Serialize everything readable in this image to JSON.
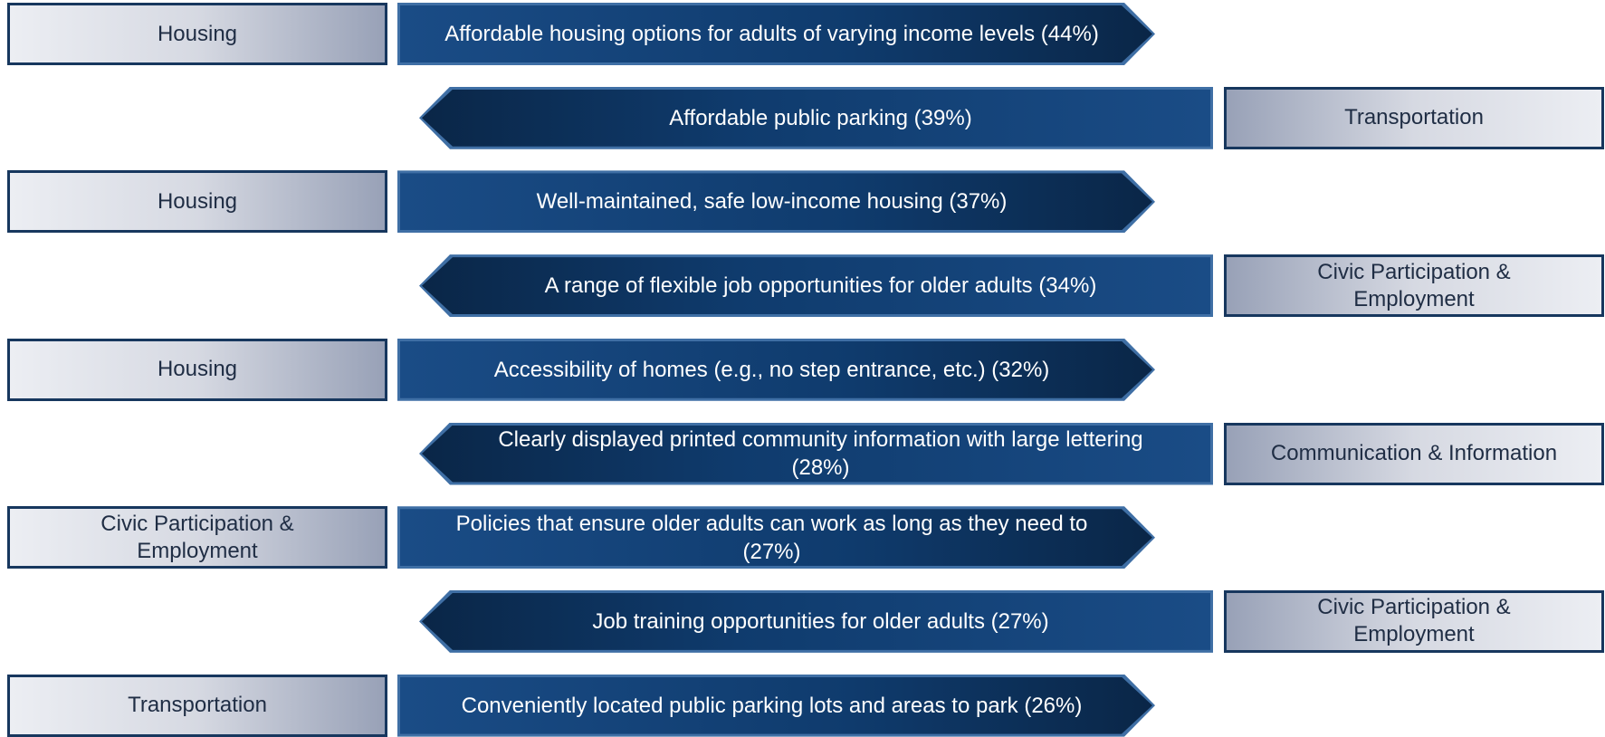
{
  "rows": [
    {
      "category": "Housing",
      "text": "Affordable housing options for adults of varying income levels (44%)"
    },
    {
      "category": "Transportation",
      "text": "Affordable public parking (39%)"
    },
    {
      "category": "Housing",
      "text": "Well-maintained, safe low-income housing (37%)"
    },
    {
      "category": "Civic Participation & Employment",
      "text": "A range of flexible job opportunities for older adults (34%)"
    },
    {
      "category": "Housing",
      "text": "Accessibility of homes (e.g., no step entrance, etc.) (32%)"
    },
    {
      "category": "Communication & Information",
      "text": "Clearly displayed printed community information with large lettering (28%)"
    },
    {
      "category": "Civic Participation & Employment",
      "text": "Policies that ensure older adults can work as long as they need to (27%)"
    },
    {
      "category": "Civic Participation & Employment",
      "text": "Job training opportunities for older adults (27%)"
    },
    {
      "category": "Transportation",
      "text": "Conveniently located public parking lots and areas to park (26%)"
    }
  ]
}
